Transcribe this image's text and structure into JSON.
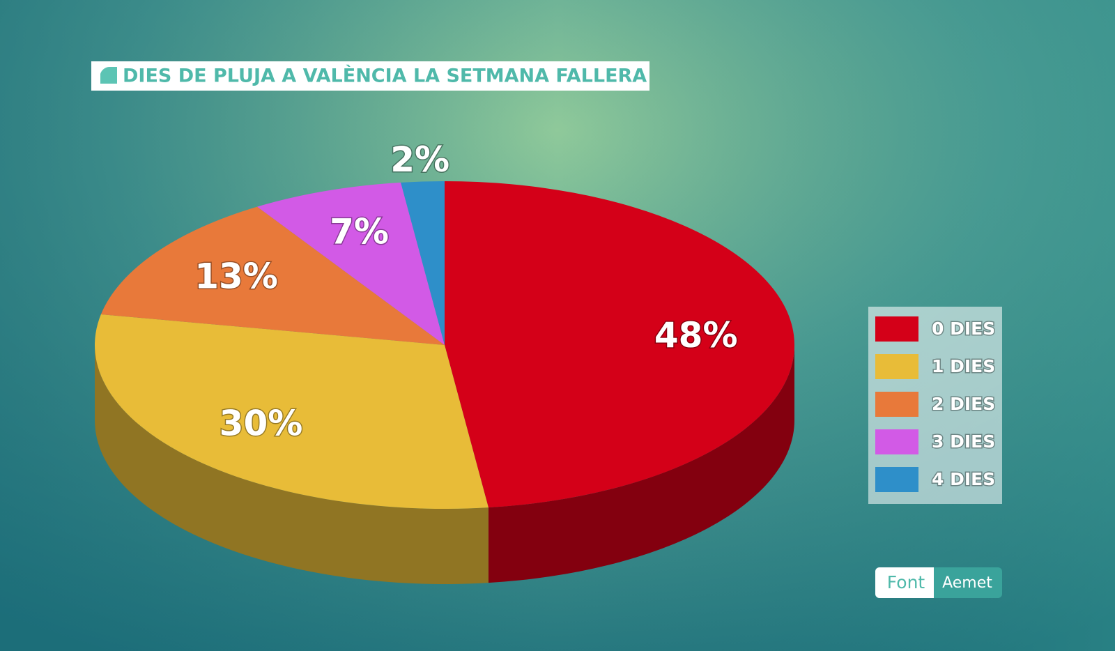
{
  "chart_data": {
    "type": "pie",
    "title": "DIES DE PLUJA A VALÈNCIA LA SETMANA FALLERA",
    "categories": [
      "0 DIES",
      "1 DIES",
      "2 DIES",
      "3 DIES",
      "4 DIES"
    ],
    "values": [
      48,
      30,
      13,
      7,
      2
    ],
    "value_labels": [
      "48%",
      "30%",
      "13%",
      "7%",
      "2%"
    ],
    "colors": [
      "#d40018",
      "#e8bc38",
      "#e8793a",
      "#d25ae6",
      "#2e8fc9"
    ]
  },
  "source": {
    "label": "Font",
    "value": "Aemet"
  }
}
